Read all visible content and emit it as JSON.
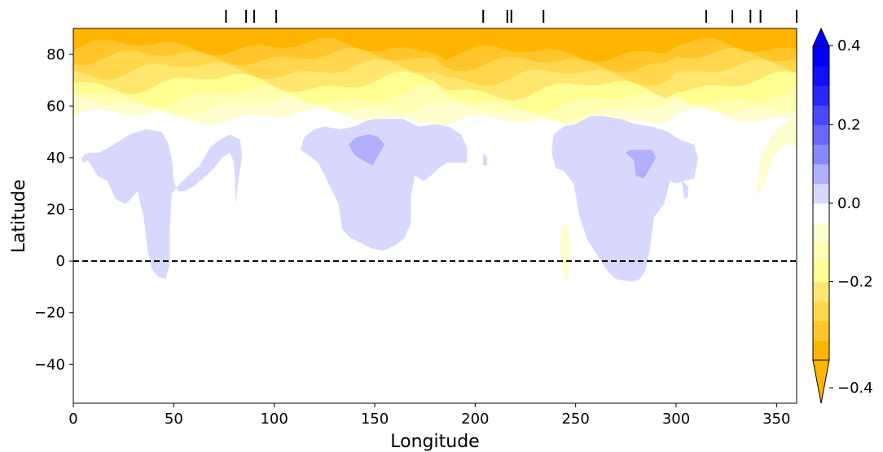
{
  "chart_data": {
    "type": "heatmap",
    "title": "",
    "xlabel": "Longitude",
    "ylabel": "Latitude",
    "xlim": [
      0,
      360
    ],
    "ylim": [
      -55,
      90
    ],
    "xticks": [
      0,
      50,
      100,
      150,
      200,
      250,
      300,
      350
    ],
    "xtick_labels": [
      "0",
      "50",
      "100",
      "150",
      "200",
      "250",
      "300",
      "350"
    ],
    "yticks": [
      -40,
      -20,
      0,
      20,
      40,
      60,
      80
    ],
    "ytick_labels": [
      "−40",
      "−20",
      "0",
      "20",
      "40",
      "60",
      "80"
    ],
    "reference_line": {
      "latitude": 0,
      "style": "dashed",
      "color": "#000000"
    },
    "top_markers_longitude": [
      76,
      86,
      90,
      101,
      204,
      216,
      218,
      234,
      315,
      328,
      337,
      342,
      360
    ],
    "colorbar": {
      "levels": [
        -0.4,
        -0.35,
        -0.3,
        -0.25,
        -0.2,
        -0.15,
        -0.1,
        -0.05,
        0.0,
        0.05,
        0.1,
        0.15,
        0.2,
        0.25,
        0.3,
        0.35,
        0.4
      ],
      "colors": [
        "#ffb500",
        "#ffc52a",
        "#ffd64c",
        "#ffe66e",
        "#ffff91",
        "#ffffb1",
        "#fffece",
        "#ffffff",
        "#d8d8ff",
        "#b0b0ff",
        "#8888ff",
        "#6868ff",
        "#4848ff",
        "#2828ff",
        "#1010ff",
        "#0000ff"
      ],
      "tick_values": [
        -0.4,
        -0.2,
        0.0,
        0.2,
        0.4
      ],
      "tick_labels": [
        "−0.4",
        "−0.2",
        "0.0",
        "0.2",
        "0.4"
      ],
      "extend": "both"
    },
    "fields": {
      "polar_band": {
        "description": "negative values north of ~55N, strongest (-0.4) near 85-90N",
        "south_edge_lat": 55,
        "strongest_value": -0.4
      },
      "positive_regions": [
        {
          "name": "region_1",
          "lon_range": [
            5,
            85
          ],
          "lat_range": [
            -7,
            52
          ],
          "value": 0.05
        },
        {
          "name": "region_2",
          "lon_range": [
            112,
            197
          ],
          "lat_range": [
            5,
            56
          ],
          "value": 0.05,
          "core": {
            "lon": 147,
            "lat": 43,
            "value": 0.1
          }
        },
        {
          "name": "region_3",
          "lon_range": [
            238,
            311
          ],
          "lat_range": [
            -8,
            57
          ],
          "value": 0.05,
          "core": {
            "lon": 285,
            "lat": 38,
            "value": 0.1
          }
        }
      ],
      "weak_negative_streak": {
        "lon": 244,
        "lat_range": [
          -8,
          15
        ],
        "value": -0.05
      }
    }
  }
}
